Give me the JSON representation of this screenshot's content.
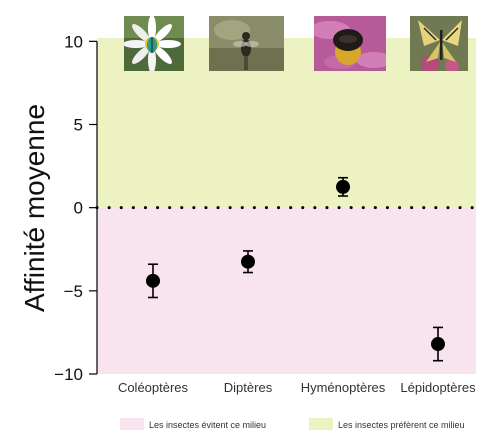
{
  "chart_data": {
    "type": "scatter",
    "title": "",
    "xlabel": "",
    "ylabel": "Affinité moyenne",
    "ylim": [
      -10,
      10.2
    ],
    "yticks": [
      -10,
      -5,
      0,
      5,
      10
    ],
    "grid": false,
    "legend_placement": "bottom",
    "categories": [
      "Coléoptères",
      "Diptères",
      "Hyménoptères",
      "Lépidoptères"
    ],
    "series": [
      {
        "values": [
          -4.4,
          -3.25,
          1.25,
          -8.2
        ],
        "error_low": [
          -5.4,
          -3.9,
          0.7,
          -9.2
        ],
        "error_high": [
          -3.4,
          -2.6,
          1.8,
          -7.2
        ]
      }
    ],
    "reference_line": {
      "y": 0,
      "style": "dotted"
    },
    "regions": [
      {
        "label": "Les insectes préfèrent ce milieu",
        "y_from": 0,
        "y_to": 10.2,
        "color": "#ecf2c2"
      },
      {
        "label": "Les insectes évitent ce milieu",
        "y_from": -10,
        "y_to": 0,
        "color": "#f7e4ef"
      }
    ],
    "insect_photos": [
      {
        "category": "Coléoptères",
        "icon": "beetle-on-daisy-photo"
      },
      {
        "category": "Diptères",
        "icon": "fly-photo"
      },
      {
        "category": "Hyménoptères",
        "icon": "bumblebee-on-flower-photo"
      },
      {
        "category": "Lépidoptères",
        "icon": "swallowtail-butterfly-photo"
      }
    ],
    "colors": {
      "marker": "#000000",
      "axis": "#000000",
      "text": "#333333"
    }
  }
}
